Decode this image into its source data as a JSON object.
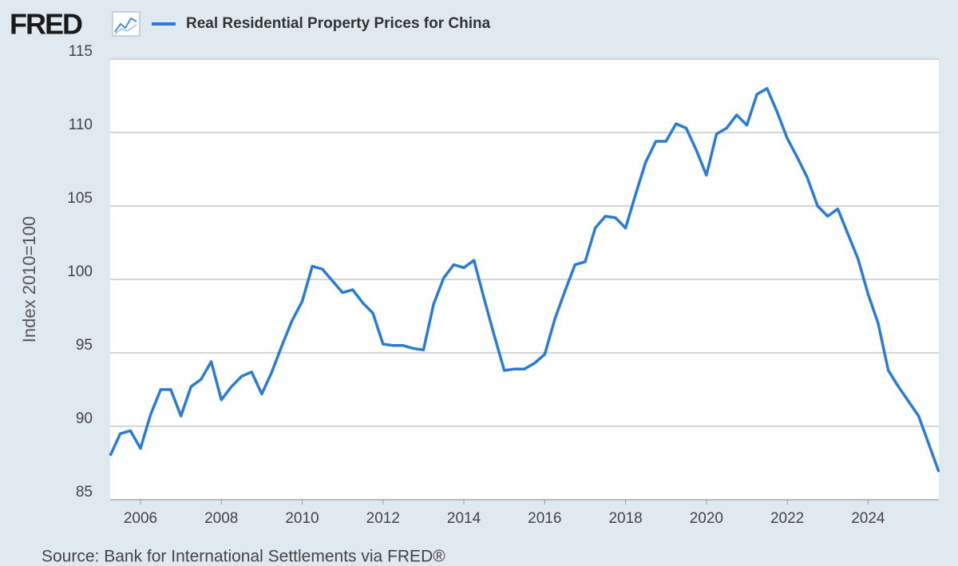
{
  "logo": "FRED",
  "chart_data": {
    "type": "line",
    "y_label": "Index 2010=100",
    "source": "Source: Bank for International Settlements via FRED®",
    "x": [
      2005.25,
      2005.5,
      2005.75,
      2006,
      2006.25,
      2006.5,
      2006.75,
      2007,
      2007.25,
      2007.5,
      2007.75,
      2008,
      2008.25,
      2008.5,
      2008.75,
      2009,
      2009.25,
      2009.5,
      2009.75,
      2010,
      2010.25,
      2010.5,
      2010.75,
      2011,
      2011.25,
      2011.5,
      2011.75,
      2012,
      2012.25,
      2012.5,
      2012.75,
      2013,
      2013.25,
      2013.5,
      2013.75,
      2014,
      2014.25,
      2014.5,
      2014.75,
      2015,
      2015.25,
      2015.5,
      2015.75,
      2016,
      2016.25,
      2016.5,
      2016.75,
      2017,
      2017.25,
      2017.5,
      2017.75,
      2018,
      2018.25,
      2018.5,
      2018.75,
      2019,
      2019.25,
      2019.5,
      2019.75,
      2020,
      2020.25,
      2020.5,
      2020.75,
      2021,
      2021.25,
      2021.5,
      2021.75,
      2022,
      2022.25,
      2022.5,
      2022.75,
      2023,
      2023.25,
      2023.5,
      2023.75,
      2024,
      2024.25,
      2024.5,
      2024.75,
      2025,
      2025.25,
      2025.5,
      2025.75
    ],
    "series": [
      {
        "name": "Real Residential Property Prices for China",
        "color": "#2a7bd6",
        "values": [
          88.0,
          89.5,
          89.7,
          88.5,
          90.8,
          92.5,
          92.5,
          90.7,
          92.7,
          93.2,
          94.4,
          91.8,
          92.7,
          93.4,
          93.7,
          92.2,
          93.7,
          95.5,
          97.2,
          98.5,
          100.9,
          100.7,
          99.9,
          99.1,
          99.3,
          98.4,
          97.7,
          95.6,
          95.5,
          95.5,
          95.3,
          95.2,
          98.3,
          100.1,
          101.0,
          100.8,
          101.3,
          98.7,
          96.2,
          93.8,
          93.9,
          93.9,
          94.3,
          94.9,
          97.3,
          99.2,
          101.0,
          101.2,
          103.5,
          104.3,
          104.2,
          103.5,
          105.8,
          108.0,
          109.4,
          109.4,
          110.6,
          110.3,
          108.8,
          107.1,
          109.9,
          110.3,
          111.2,
          110.5,
          112.6,
          113.0,
          111.4,
          109.6,
          108.3,
          106.9,
          105.0,
          104.3,
          104.8,
          103.1,
          101.4,
          99.0,
          97.0,
          93.8,
          92.7,
          91.7,
          90.7,
          88.8,
          86.9
        ]
      }
    ],
    "xlim": [
      2005.25,
      2025.75
    ],
    "xticks": [
      2006,
      2008,
      2010,
      2012,
      2014,
      2016,
      2018,
      2020,
      2022,
      2024
    ],
    "ylim": [
      85,
      115
    ],
    "yticks": [
      85,
      90,
      95,
      100,
      105,
      110,
      115
    ],
    "grid": true
  }
}
